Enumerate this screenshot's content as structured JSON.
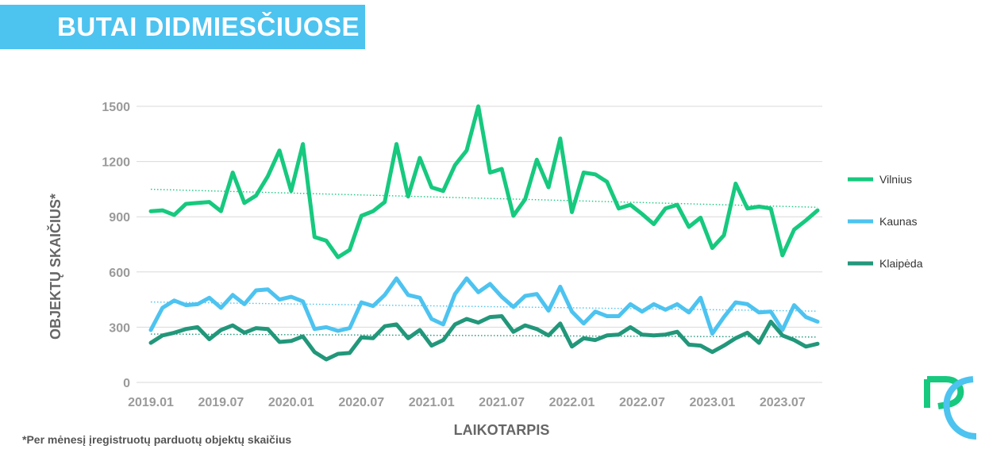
{
  "header": {
    "title": "BUTAI DIDMIESČIUOSE"
  },
  "footnote": "*Per mėnesį įregistruotų parduotų objektų skaičius",
  "chart_data": {
    "type": "line",
    "title": "BUTAI DIDMIESČIUOSE",
    "xlabel": "LAIKOTARPIS",
    "ylabel": "OBJEKTŲ SKAIČIUS*",
    "ylim": [
      0,
      1500
    ],
    "yticks": [
      0,
      300,
      600,
      900,
      1200,
      1500
    ],
    "xtick_labels": [
      "2019.01",
      "2019.07",
      "2020.01",
      "2020.07",
      "2021.01",
      "2021.07",
      "2022.01",
      "2022.07",
      "2023.01",
      "2023.07"
    ],
    "x": [
      "2019.01",
      "2019.02",
      "2019.03",
      "2019.04",
      "2019.05",
      "2019.06",
      "2019.07",
      "2019.08",
      "2019.09",
      "2019.10",
      "2019.11",
      "2019.12",
      "2020.01",
      "2020.02",
      "2020.03",
      "2020.04",
      "2020.05",
      "2020.06",
      "2020.07",
      "2020.08",
      "2020.09",
      "2020.10",
      "2020.11",
      "2020.12",
      "2021.01",
      "2021.02",
      "2021.03",
      "2021.04",
      "2021.05",
      "2021.06",
      "2021.07",
      "2021.08",
      "2021.09",
      "2021.10",
      "2021.11",
      "2021.12",
      "2022.01",
      "2022.02",
      "2022.03",
      "2022.04",
      "2022.05",
      "2022.06",
      "2022.07",
      "2022.08",
      "2022.09",
      "2022.10",
      "2022.11",
      "2022.12",
      "2023.01",
      "2023.02",
      "2023.03",
      "2023.04",
      "2023.05",
      "2023.06",
      "2023.07",
      "2023.08",
      "2023.09",
      "2023.10"
    ],
    "grid": true,
    "legend_position": "right",
    "trendlines": true,
    "series": [
      {
        "name": "Vilnius",
        "color": "#16c97e",
        "values": [
          930,
          935,
          910,
          970,
          975,
          980,
          930,
          1140,
          975,
          1015,
          1120,
          1260,
          1040,
          1295,
          790,
          770,
          680,
          720,
          905,
          930,
          980,
          1295,
          1010,
          1220,
          1060,
          1040,
          1180,
          1260,
          1500,
          1140,
          1160,
          905,
          995,
          1210,
          1060,
          1325,
          925,
          1140,
          1130,
          1090,
          945,
          965,
          915,
          860,
          945,
          965,
          845,
          895,
          730,
          800,
          1080,
          945,
          955,
          945,
          690,
          830,
          880,
          935
        ]
      },
      {
        "name": "Kaunas",
        "color": "#4dc3f0",
        "values": [
          285,
          405,
          445,
          420,
          425,
          460,
          405,
          475,
          425,
          500,
          505,
          450,
          465,
          440,
          290,
          300,
          280,
          295,
          435,
          415,
          475,
          565,
          475,
          460,
          345,
          315,
          480,
          565,
          490,
          535,
          465,
          410,
          470,
          480,
          390,
          520,
          385,
          320,
          385,
          360,
          360,
          425,
          385,
          425,
          395,
          425,
          380,
          460,
          265,
          355,
          435,
          425,
          380,
          385,
          285,
          420,
          355,
          330
        ]
      },
      {
        "name": "Klaipėda",
        "color": "#22977a",
        "values": [
          215,
          255,
          270,
          290,
          300,
          235,
          285,
          310,
          270,
          295,
          290,
          220,
          225,
          250,
          165,
          125,
          155,
          160,
          245,
          240,
          305,
          315,
          240,
          285,
          200,
          230,
          315,
          345,
          325,
          355,
          360,
          275,
          310,
          290,
          255,
          320,
          195,
          240,
          230,
          255,
          260,
          300,
          260,
          255,
          260,
          275,
          205,
          200,
          165,
          200,
          240,
          270,
          215,
          330,
          255,
          230,
          195,
          210
        ]
      }
    ]
  }
}
